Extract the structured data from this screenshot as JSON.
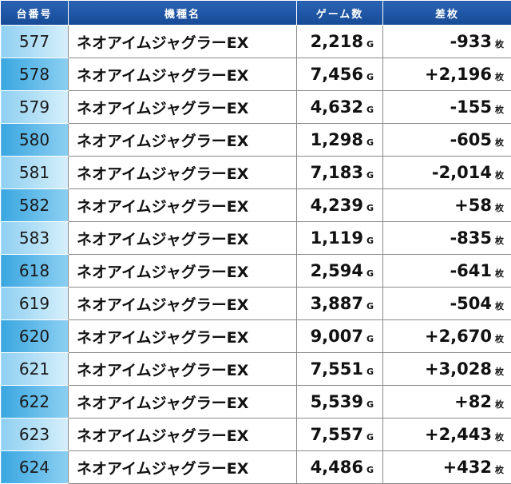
{
  "table": {
    "header": [
      "台番号",
      "機種名",
      "ゲーム数",
      "差枚"
    ],
    "rows": [
      {
        "no": "577",
        "name": "ネオアイムジャグラーEX",
        "games": "2,218",
        "games_unit": "G",
        "diff": "-933",
        "diff_unit": "枚"
      },
      {
        "no": "578",
        "name": "ネオアイムジャグラーEX",
        "games": "7,456",
        "games_unit": "G",
        "diff": "+2,196",
        "diff_unit": "枚"
      },
      {
        "no": "579",
        "name": "ネオアイムジャグラーEX",
        "games": "4,632",
        "games_unit": "G",
        "diff": "-155",
        "diff_unit": "枚"
      },
      {
        "no": "580",
        "name": "ネオアイムジャグラーEX",
        "games": "1,298",
        "games_unit": "G",
        "diff": "-605",
        "diff_unit": "枚"
      },
      {
        "no": "581",
        "name": "ネオアイムジャグラーEX",
        "games": "7,183",
        "games_unit": "G",
        "diff": "-2,014",
        "diff_unit": "枚"
      },
      {
        "no": "582",
        "name": "ネオアイムジャグラーEX",
        "games": "4,239",
        "games_unit": "G",
        "diff": "+58",
        "diff_unit": "枚"
      },
      {
        "no": "583",
        "name": "ネオアイムジャグラーEX",
        "games": "1,119",
        "games_unit": "G",
        "diff": "-835",
        "diff_unit": "枚"
      },
      {
        "no": "618",
        "name": "ネオアイムジャグラーEX",
        "games": "2,594",
        "games_unit": "G",
        "diff": "-641",
        "diff_unit": "枚"
      },
      {
        "no": "619",
        "name": "ネオアイムジャグラーEX",
        "games": "3,887",
        "games_unit": "G",
        "diff": "-504",
        "diff_unit": "枚"
      },
      {
        "no": "620",
        "name": "ネオアイムジャグラーEX",
        "games": "9,007",
        "games_unit": "G",
        "diff": "+2,670",
        "diff_unit": "枚"
      },
      {
        "no": "621",
        "name": "ネオアイムジャグラーEX",
        "games": "7,551",
        "games_unit": "G",
        "diff": "+3,028",
        "diff_unit": "枚"
      },
      {
        "no": "622",
        "name": "ネオアイムジャグラーEX",
        "games": "5,539",
        "games_unit": "G",
        "diff": "+82",
        "diff_unit": "枚"
      },
      {
        "no": "623",
        "name": "ネオアイムジャグラーEX",
        "games": "7,557",
        "games_unit": "G",
        "diff": "+2,443",
        "diff_unit": "枚"
      },
      {
        "no": "624",
        "name": "ネオアイムジャグラーEX",
        "games": "4,486",
        "games_unit": "G",
        "diff": "+432",
        "diff_unit": "枚"
      }
    ]
  }
}
